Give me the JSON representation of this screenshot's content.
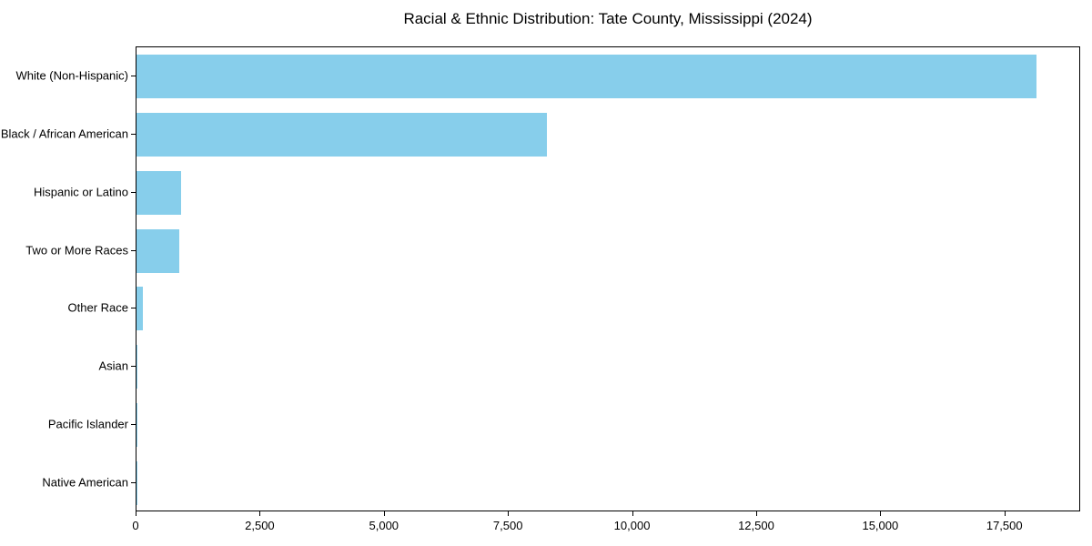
{
  "chart_data": {
    "type": "bar",
    "orientation": "horizontal",
    "title": "Racial & Ethnic Distribution: Tate County, Mississippi (2024)",
    "categories": [
      "White (Non-Hispanic)",
      "Black / African American",
      "Hispanic or Latino",
      "Two or More Races",
      "Other Race",
      "Asian",
      "Pacific Islander",
      "Native American"
    ],
    "values": [
      18120,
      8260,
      900,
      860,
      130,
      25,
      5,
      5
    ],
    "xlabel": "",
    "ylabel": "",
    "xlim": [
      0,
      19026
    ],
    "x_ticks": [
      0,
      2500,
      5000,
      7500,
      10000,
      12500,
      15000,
      17500
    ],
    "x_tick_labels": [
      "0",
      "2,500",
      "5,000",
      "7,500",
      "10,000",
      "12,500",
      "15,000",
      "17,500"
    ],
    "bar_color": "#87CEEB",
    "grid": false,
    "legend": null,
    "background_color": "#ffffff",
    "axis_color": "#000000"
  }
}
